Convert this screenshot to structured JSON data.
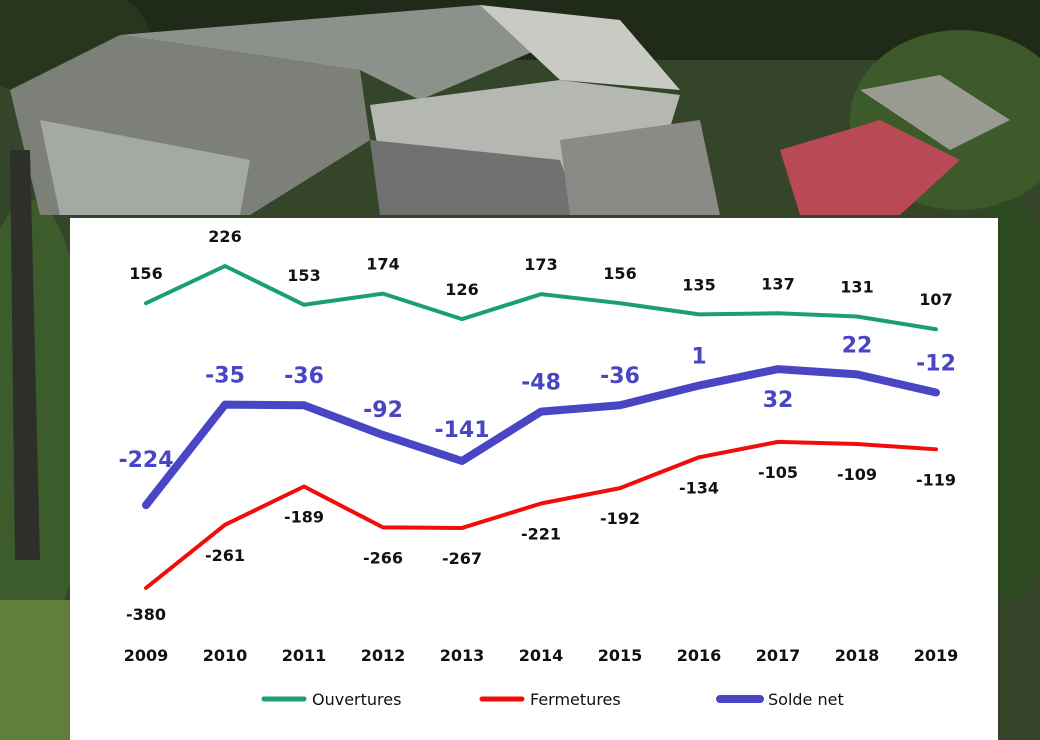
{
  "chart_data": {
    "type": "line",
    "categories": [
      "2009",
      "2010",
      "2011",
      "2012",
      "2013",
      "2014",
      "2015",
      "2016",
      "2017",
      "2018",
      "2019"
    ],
    "series": [
      {
        "name": "Ouvertures",
        "color": "#1a9e77",
        "values": [
          156,
          226,
          153,
          174,
          126,
          173,
          156,
          135,
          137,
          131,
          107
        ]
      },
      {
        "name": "Fermetures",
        "color": "#f20c0c",
        "values": [
          -380,
          -261,
          -189,
          -266,
          -267,
          -221,
          -192,
          -134,
          -105,
          -109,
          -119
        ]
      },
      {
        "name": "Solde net",
        "color": "#4a45c4",
        "values": [
          -224,
          -35,
          -36,
          -92,
          -141,
          -48,
          -36,
          1,
          32,
          22,
          -12
        ]
      }
    ],
    "legend": "bottom",
    "grid": false,
    "title": "",
    "xlabel": "",
    "ylabel": ""
  },
  "background": {
    "description_icon": "aerial-factory-photo"
  }
}
